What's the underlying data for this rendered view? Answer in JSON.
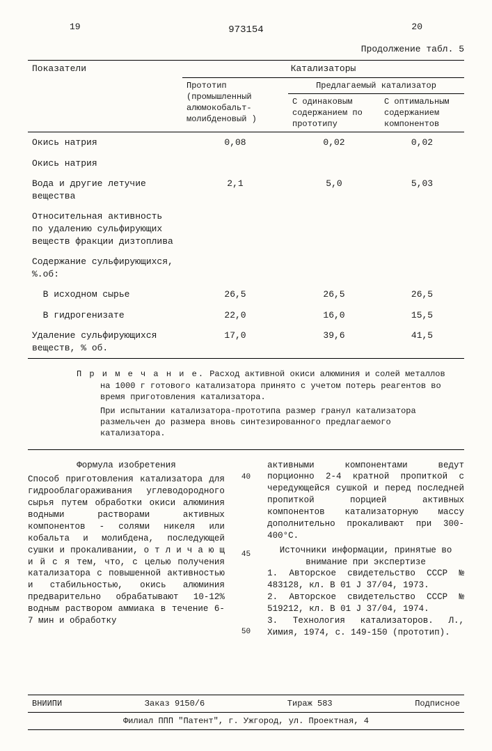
{
  "page_left": "19",
  "page_right": "20",
  "patent_number": "973154",
  "continuation": "Продолжение табл. 5",
  "table": {
    "col_header_main": "Показатели",
    "col_header_cat": "Катализаторы",
    "col_header_proto": "Прототип (промышленный алюмокобальт-молибденовый )",
    "col_header_prop": "Предлагаемый катализатор",
    "col_header_same": "С одинаковым содержанием по прототипу",
    "col_header_opt": "С оптимальным содержанием компонентов",
    "rows": [
      {
        "label": "Окись натрия",
        "v1": "0,08",
        "v2": "0,02",
        "v3": "0,02"
      },
      {
        "label": "Окись натрия",
        "v1": "",
        "v2": "",
        "v3": ""
      },
      {
        "label": "Вода и другие летучие вещества",
        "v1": "2,1",
        "v2": "5,0",
        "v3": "5,03"
      },
      {
        "label": "Относительная активность по удалению сульфирующих веществ фракции дизтоплива",
        "v1": "",
        "v2": "",
        "v3": ""
      },
      {
        "label": "Содержание сульфирующихся, %.об:",
        "v1": "",
        "v2": "",
        "v3": ""
      },
      {
        "label": "  В исходном сырье",
        "v1": "26,5",
        "v2": "26,5",
        "v3": "26,5"
      },
      {
        "label": "  В гидрогенизате",
        "v1": "22,0",
        "v2": "16,0",
        "v3": "15,5"
      },
      {
        "label": "Удаление сульфирующихся веществ, % об.",
        "v1": "17,0",
        "v2": "39,6",
        "v3": "41,5"
      }
    ]
  },
  "note": {
    "lead": "П р и м е ч а н и е.",
    "text1": "Расход активной окиси алюминия и солей металлов на 1000 г готового катализатора принято с учетом потерь реагентов во время приготовления катализатора.",
    "text2": "При испытании катализатора-прототипа размер гранул катализатора размельчен до размера вновь синтезированного предлагаемого катализатора."
  },
  "formula_title": "Формула изобретения",
  "col_left_text": "Способ приготовления катализатора для гидрооблагораживания углеводородного сырья путем обработки окиси алюминия водными растворами активных компонентов - солями никеля или кобальта и молибдена, последующей сушки и прокаливании, о т л и ч а ю щ и й с я  тем, что, с целью получения катализатора с повышенной активностью и стабильностью, окись алюминия предварительно обрабатывают 10-12% водным раствором аммиака в течение 6-7 мин и обработку",
  "col_right_text1": "активными компонентами ведут порционно 2-4 кратной пропиткой с чередующейся сушкой и перед последней пропиткой порцией активных компонентов катализаторную массу дополнительно прокаливают при 300-400°С.",
  "sources_title": "Источники информации, принятые во внимание при экспертизе",
  "source1": "1. Авторское свидетельство СССР № 483128, кл. В 01 J 37/04, 1973.",
  "source2": "2. Авторское свидетельство СССР № 519212, кл. В 01 J 37/04, 1974.",
  "source3": "3. Технология катализаторов. Л., Химия, 1974, с. 149-150 (прототип).",
  "line_nums": [
    "40",
    "45",
    "50"
  ],
  "footer": {
    "org": "ВНИИПИ",
    "order": "Заказ 9150/6",
    "tirazh": "Тираж 583",
    "sub": "Подписное",
    "addr": "Филиал ППП \"Патент\", г. Ужгород, ул. Проектная, 4"
  }
}
